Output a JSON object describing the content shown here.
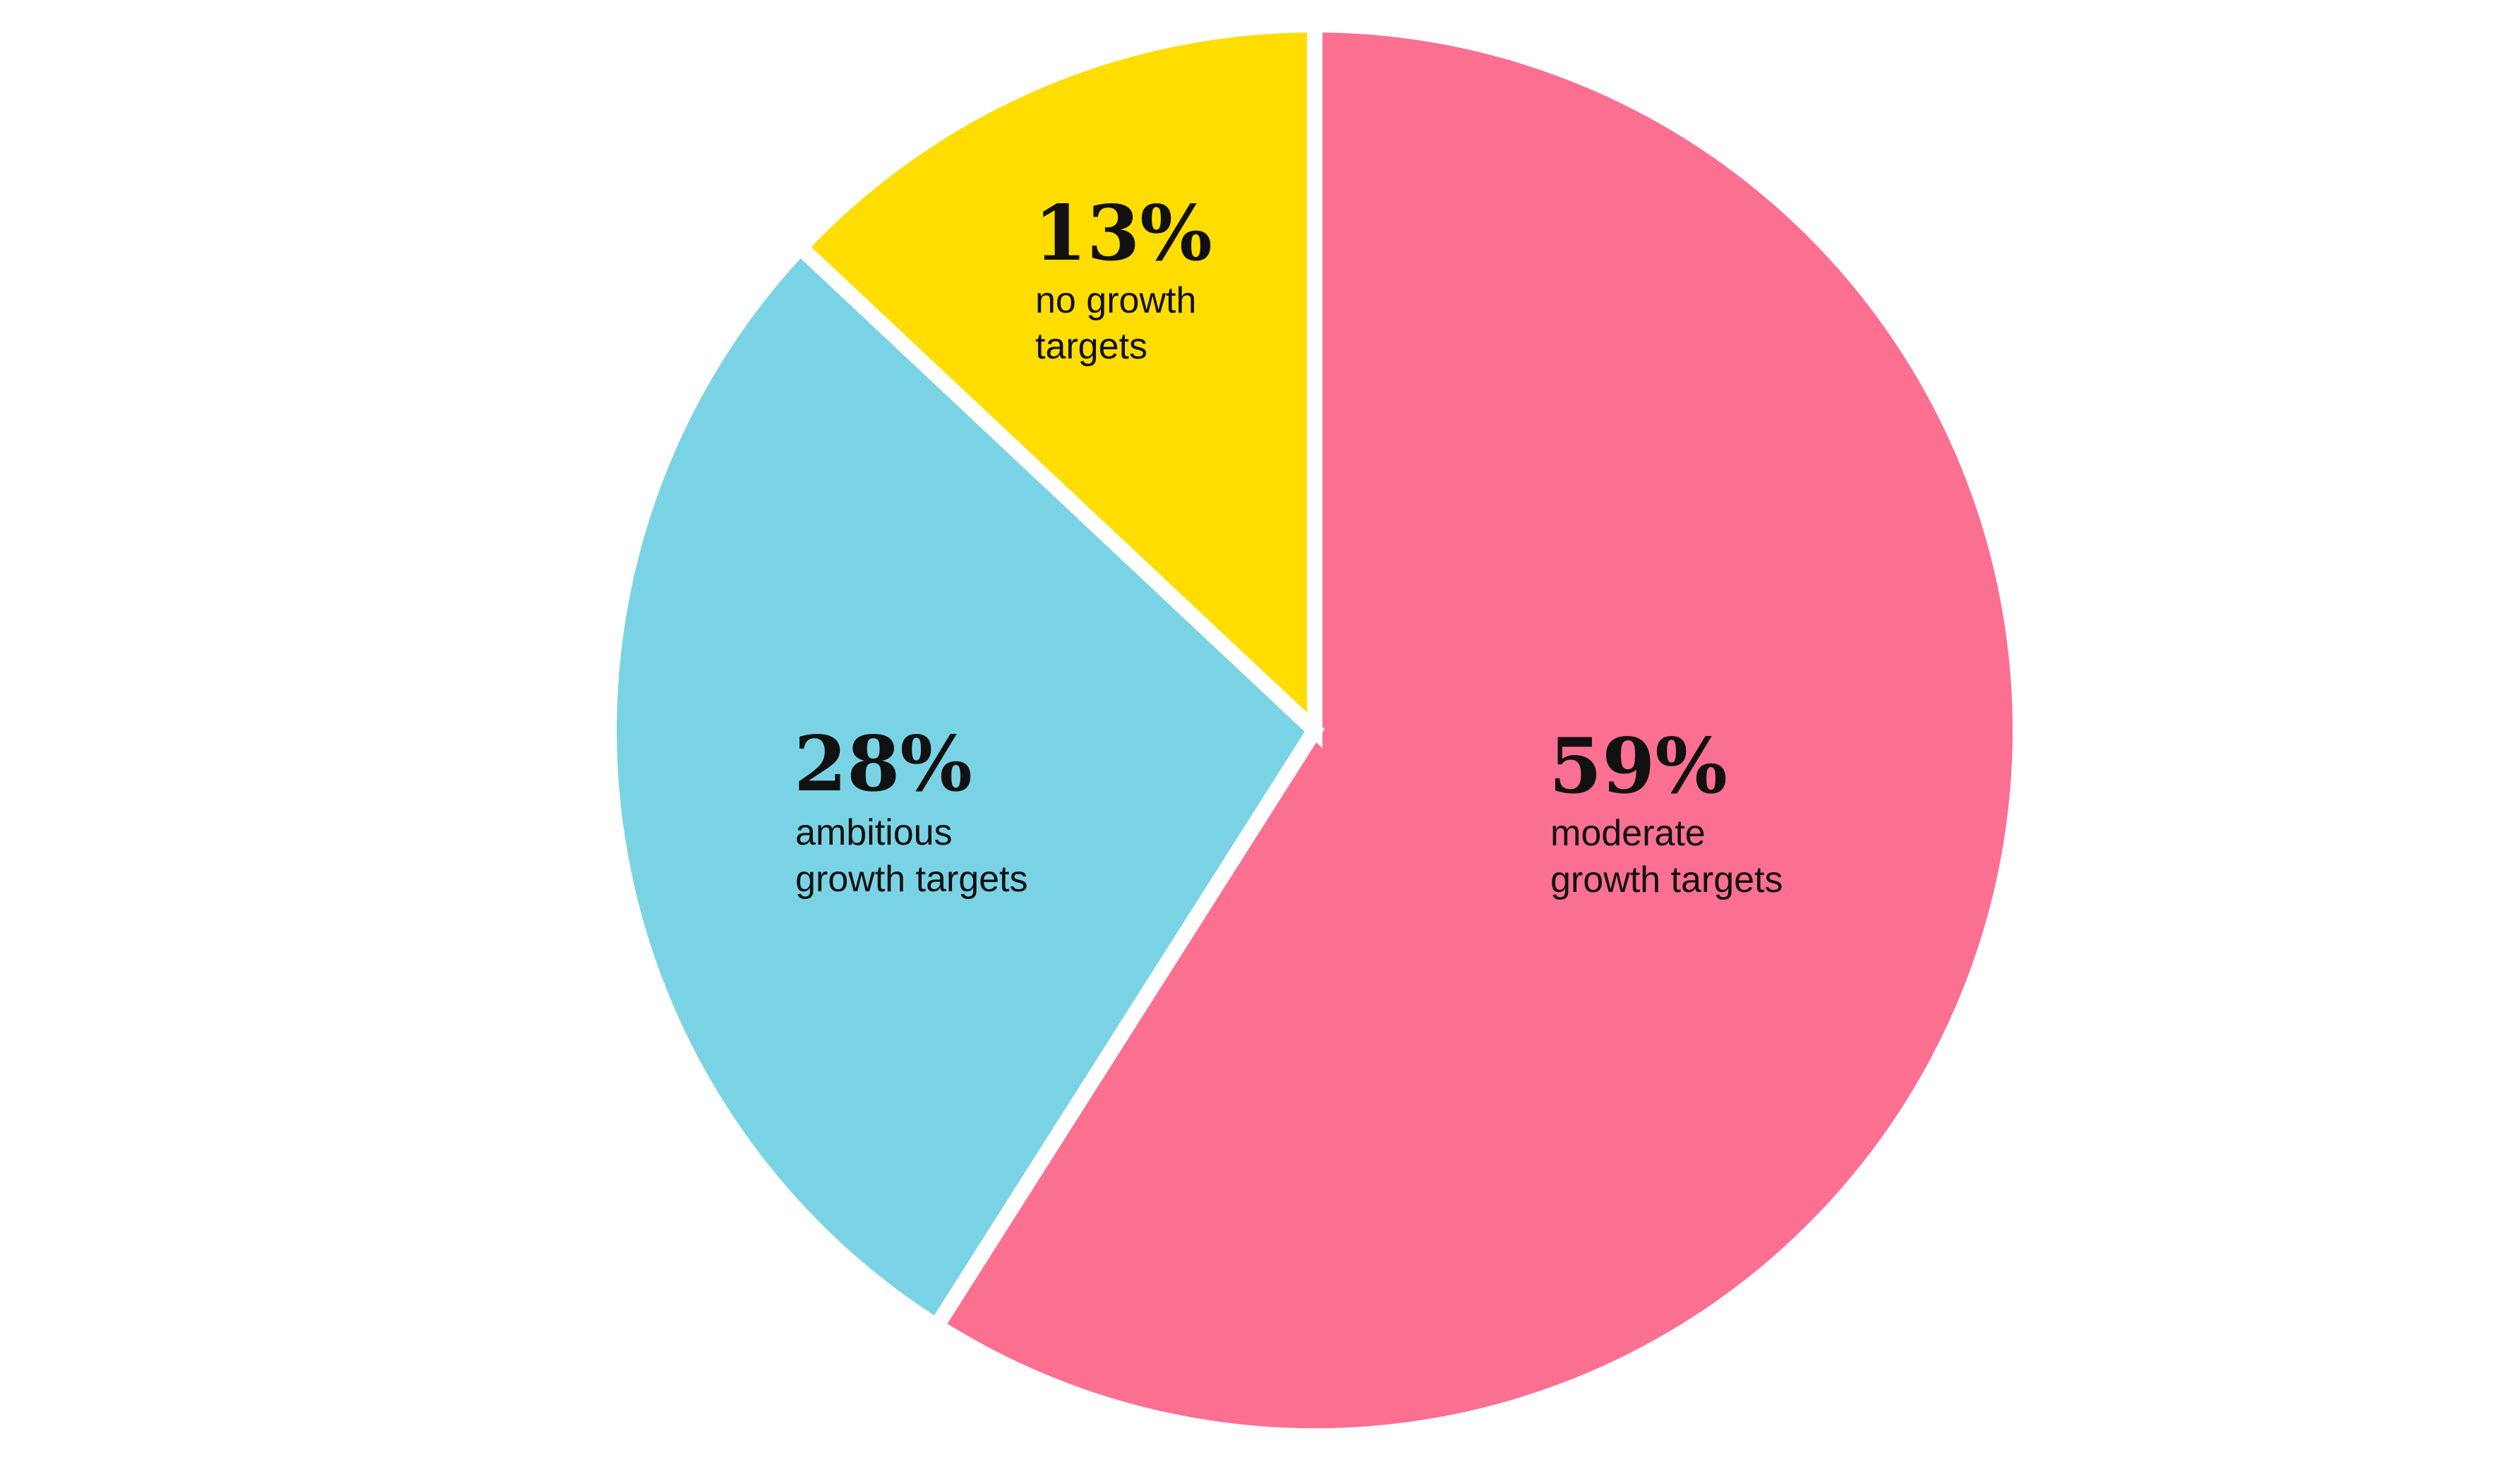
{
  "chart_data": {
    "type": "pie",
    "title": "",
    "slices": [
      {
        "value": 59,
        "label": "59%",
        "description": [
          "moderate",
          "growth targets"
        ],
        "color": "#FB6F90"
      },
      {
        "value": 28,
        "label": "28%",
        "description": [
          "ambitious",
          "growth targets"
        ],
        "color": "#7AD3E4"
      },
      {
        "value": 13,
        "label": "13%",
        "description": [
          "no growth",
          "targets"
        ],
        "color": "#FFDD00"
      }
    ],
    "start": "12 o'clock",
    "direction": "clockwise",
    "separator_color": "#FFFFFF"
  }
}
